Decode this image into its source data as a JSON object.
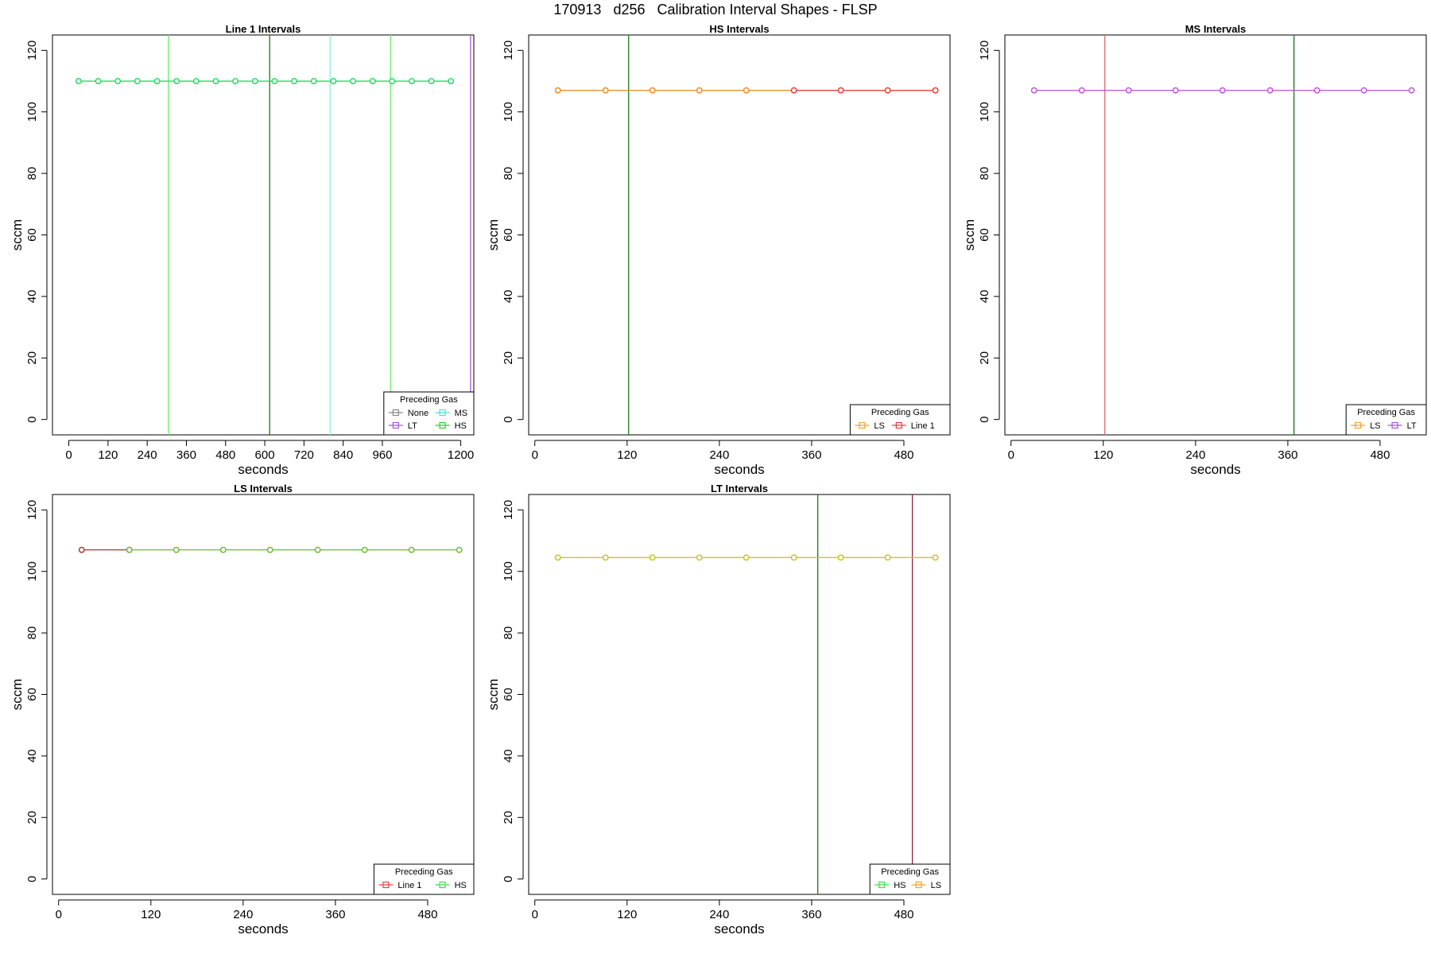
{
  "figure": {
    "title": "170913   d256   Calibration Interval Shapes - FLSP"
  },
  "chart_data": [
    {
      "type": "line",
      "title": "Line 1 Intervals",
      "xlabel": "seconds",
      "ylabel": "sccm",
      "xlim": [
        -50,
        1240
      ],
      "ylim": [
        -5,
        125
      ],
      "xticks": [
        0,
        120,
        240,
        360,
        480,
        600,
        720,
        840,
        960,
        1200
      ],
      "yticks": [
        0,
        20,
        40,
        60,
        80,
        100,
        120
      ],
      "vlines": [
        {
          "x": 305,
          "color": "#66ee66"
        },
        {
          "x": 615,
          "color": "#1a7a1a"
        },
        {
          "x": 800,
          "color": "#88eedd"
        },
        {
          "x": 985,
          "color": "#66ee66"
        },
        {
          "x": 1230,
          "color": "#aa55dd"
        }
      ],
      "series": [
        {
          "name": "HS",
          "color": "#22dd66",
          "x": [
            30,
            90,
            150,
            210,
            270,
            330,
            390,
            450,
            510,
            570,
            630,
            690,
            750,
            810,
            870,
            930,
            990,
            1050,
            1110,
            1170
          ],
          "y": [
            110,
            110,
            110,
            110,
            110,
            110,
            110,
            110,
            110,
            110,
            110,
            110,
            110,
            110,
            110,
            110,
            110,
            110,
            110,
            110
          ]
        }
      ],
      "legend": {
        "title": "Preceding Gas",
        "position": "bottom-right",
        "columns": 2,
        "entries": [
          {
            "label": "None",
            "color": "#888888"
          },
          {
            "label": "MS",
            "color": "#55dddd"
          },
          {
            "label": "LT",
            "color": "#aa55dd"
          },
          {
            "label": "HS",
            "color": "#33cc33"
          }
        ]
      }
    },
    {
      "type": "line",
      "title": "HS Intervals",
      "xlabel": "seconds",
      "ylabel": "sccm",
      "xlim": [
        -8,
        540
      ],
      "ylim": [
        -5,
        125
      ],
      "xticks": [
        0,
        120,
        240,
        360,
        480
      ],
      "yticks": [
        0,
        20,
        40,
        60,
        80,
        100,
        120
      ],
      "vlines": [
        {
          "x": 122,
          "color": "#1a7a1a"
        }
      ],
      "series": [
        {
          "name": "LS",
          "color": "#f28a22",
          "x": [
            30,
            92,
            153,
            214,
            275,
            337,
            398,
            459,
            521
          ],
          "y": [
            107,
            107,
            107,
            107,
            107,
            107,
            107,
            107,
            107
          ]
        },
        {
          "name": "Line 1",
          "color": "#e84040",
          "x": [
            337,
            398,
            459,
            521
          ],
          "y": [
            107,
            107,
            107,
            107
          ]
        }
      ],
      "legend": {
        "title": "Preceding Gas",
        "position": "bottom-right",
        "columns": 2,
        "entries": [
          {
            "label": "LS",
            "color": "#f5a030"
          },
          {
            "label": "Line 1",
            "color": "#e84040"
          }
        ]
      }
    },
    {
      "type": "line",
      "title": "MS Intervals",
      "xlabel": "seconds",
      "ylabel": "sccm",
      "xlim": [
        -8,
        540
      ],
      "ylim": [
        -5,
        125
      ],
      "xticks": [
        0,
        120,
        240,
        360,
        480
      ],
      "yticks": [
        0,
        20,
        40,
        60,
        80,
        100,
        120
      ],
      "vlines": [
        {
          "x": 122,
          "color": "#dd6666"
        },
        {
          "x": 368,
          "color": "#1a7a1a"
        }
      ],
      "series": [
        {
          "name": "LT",
          "color": "#bb55dd",
          "x": [
            30,
            92,
            153,
            214,
            275,
            337,
            398,
            459,
            521
          ],
          "y": [
            107,
            107,
            107,
            107,
            107,
            107,
            107,
            107,
            107
          ]
        }
      ],
      "legend": {
        "title": "Preceding Gas",
        "position": "bottom-right",
        "columns": 2,
        "entries": [
          {
            "label": "LS",
            "color": "#f5a030"
          },
          {
            "label": "LT",
            "color": "#aa55dd"
          }
        ]
      }
    },
    {
      "type": "line",
      "title": "LS Intervals",
      "xlabel": "seconds",
      "ylabel": "sccm",
      "xlim": [
        -8,
        540
      ],
      "ylim": [
        -5,
        125
      ],
      "xticks": [
        0,
        120,
        240,
        360,
        480
      ],
      "yticks": [
        0,
        20,
        40,
        60,
        80,
        100,
        120
      ],
      "vlines": [],
      "series": [
        {
          "name": "Line 1",
          "color": "#b23a1a",
          "x": [
            30,
            92
          ],
          "y": [
            107,
            107
          ]
        },
        {
          "name": "HS",
          "color": "#66c22a",
          "x": [
            92,
            153,
            214,
            275,
            337,
            398,
            459,
            521
          ],
          "y": [
            107,
            107,
            107,
            107,
            107,
            107,
            107,
            107
          ]
        }
      ],
      "legend": {
        "title": "Preceding Gas",
        "position": "bottom-right",
        "columns": 2,
        "entries": [
          {
            "label": "Line 1",
            "color": "#e84040"
          },
          {
            "label": "HS",
            "color": "#44dd44"
          }
        ]
      }
    },
    {
      "type": "line",
      "title": "LT Intervals",
      "xlabel": "seconds",
      "ylabel": "sccm",
      "xlim": [
        -8,
        540
      ],
      "ylim": [
        -5,
        125
      ],
      "xticks": [
        0,
        120,
        240,
        360,
        480
      ],
      "yticks": [
        0,
        20,
        40,
        60,
        80,
        100,
        120
      ],
      "vlines": [
        {
          "x": 368,
          "color": "#1a7a1a"
        },
        {
          "x": 491,
          "color": "#8b2a3a"
        }
      ],
      "series": [
        {
          "name": "HS",
          "color": "#c8c820",
          "x": [
            30,
            92,
            153,
            214,
            275,
            337,
            398,
            459,
            521
          ],
          "y": [
            104.5,
            104.5,
            104.5,
            104.5,
            104.5,
            104.5,
            104.5,
            104.5,
            104.5
          ]
        }
      ],
      "legend": {
        "title": "Preceding Gas",
        "position": "bottom-right",
        "columns": 2,
        "entries": [
          {
            "label": "HS",
            "color": "#44dd44"
          },
          {
            "label": "LS",
            "color": "#f5a030"
          }
        ]
      }
    }
  ]
}
